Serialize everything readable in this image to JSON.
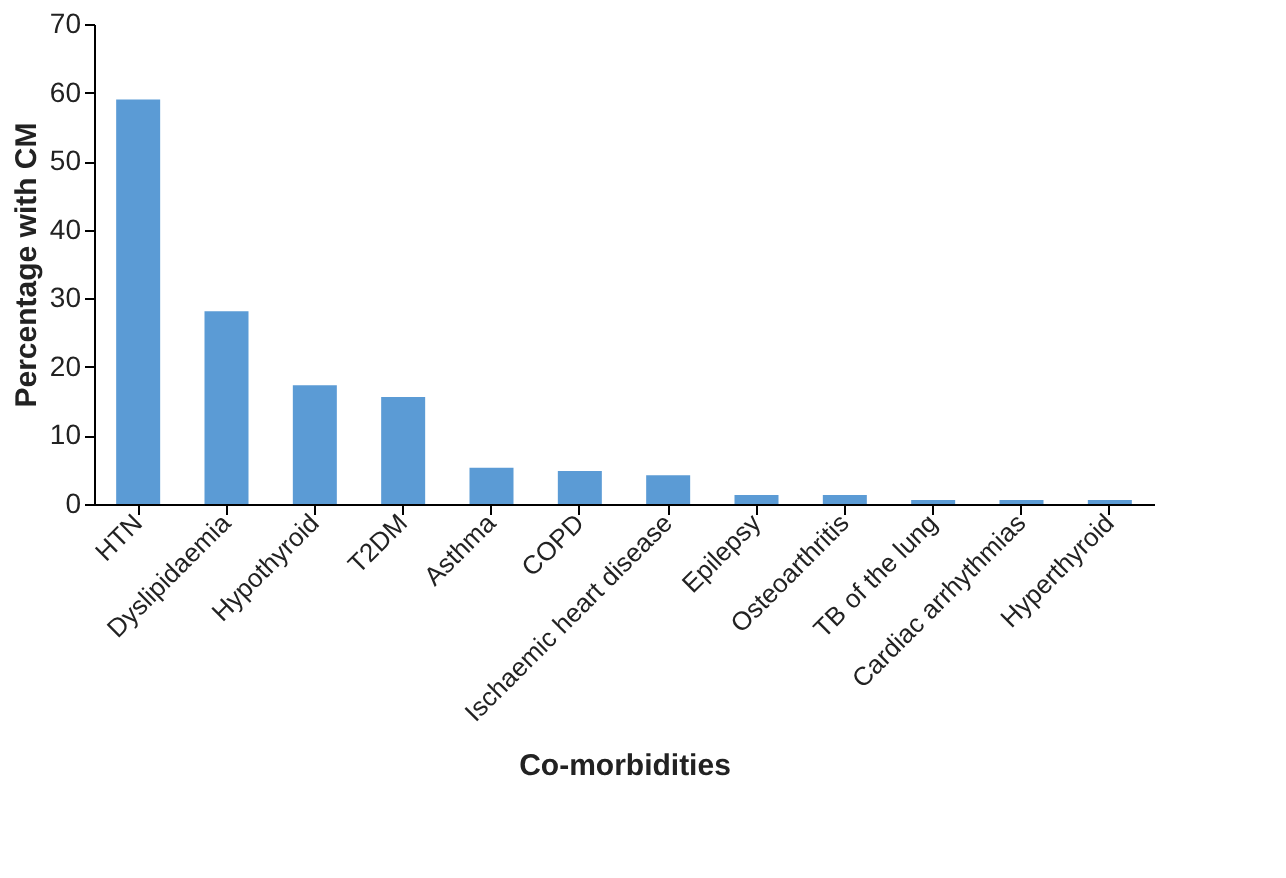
{
  "chart_data": {
    "type": "bar",
    "xlabel": "Co-morbidities",
    "ylabel": "Percentage with CM",
    "categories": [
      "HTN",
      "Dyslipidaemia",
      "Hypothyroid",
      "T2DM",
      "Asthma",
      "COPD",
      "Ischaemic heart disease",
      "Epilepsy",
      "Osteoarthritis",
      "TB of the lung",
      "Cardiac arrhythmias",
      "Hyperthyroid"
    ],
    "values": [
      59.0,
      28.1,
      17.3,
      15.6,
      5.3,
      4.8,
      4.2,
      1.3,
      1.3,
      0.6,
      0.6,
      0.6
    ],
    "color": "#5b9bd5",
    "ylim": [
      0,
      70
    ],
    "yticks": [
      0,
      10,
      20,
      30,
      40,
      50,
      60,
      70
    ],
    "grid": false
  }
}
